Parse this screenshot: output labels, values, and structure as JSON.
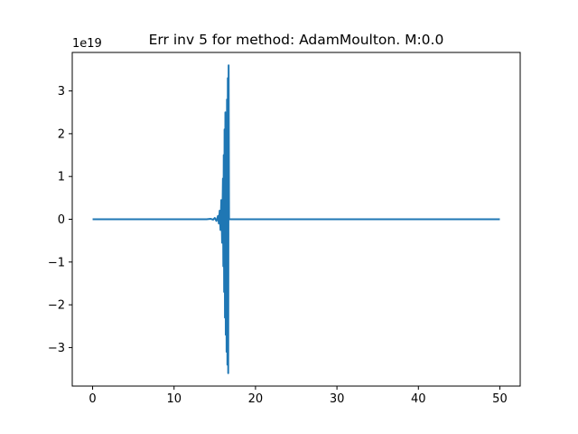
{
  "chart_data": {
    "type": "line",
    "title": "Err inv 5 for method: AdamMoulton. M:0.0",
    "xlabel": "",
    "ylabel": "",
    "y_offset_label": "1e19",
    "xlim": [
      -2.5,
      52.5
    ],
    "ylim": [
      -3.9,
      3.9
    ],
    "x_ticks": [
      0,
      10,
      20,
      30,
      40,
      50
    ],
    "x_tick_labels": [
      "0",
      "10",
      "20",
      "30",
      "40",
      "50"
    ],
    "y_ticks": [
      -3,
      -2,
      -1,
      0,
      1,
      2,
      3
    ],
    "y_tick_labels": [
      "−3",
      "−2",
      "−1",
      "0",
      "1",
      "2",
      "3"
    ],
    "grid": false,
    "legend": "none",
    "series": [
      {
        "color": "#1f77b4",
        "x": [
          0,
          14.0,
          14.5,
          14.8,
          15.0,
          15.2,
          15.4,
          15.5,
          15.6,
          15.7,
          15.8,
          15.9,
          16.0,
          16.05,
          16.1,
          16.15,
          16.2,
          16.25,
          16.3,
          16.35,
          16.4,
          16.45,
          16.5,
          16.55,
          16.6,
          16.65,
          16.7,
          16.75,
          16.8,
          50
        ],
        "y": [
          0,
          0,
          0.01,
          -0.01,
          0.03,
          -0.04,
          0.08,
          -0.1,
          0.2,
          -0.25,
          0.45,
          -0.55,
          0.95,
          -1.1,
          1.5,
          -1.7,
          2.1,
          -2.3,
          2.5,
          -2.7,
          2.2,
          -3.1,
          2.8,
          -3.4,
          3.3,
          -3.6,
          3.6,
          0,
          0,
          0
        ]
      }
    ]
  }
}
